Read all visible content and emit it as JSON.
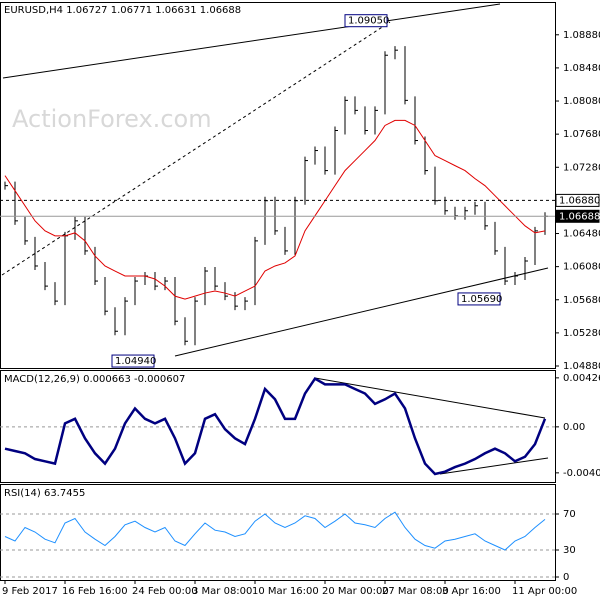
{
  "chart_data": [
    {
      "type": "ohlc",
      "title": "EURUSD,H4 1.06727 1.06771 1.06631 1.06688",
      "watermark": "ActionForex.com",
      "categories": [
        "9 Feb 2017",
        null,
        null,
        null,
        null,
        null,
        "16 Feb 16:00",
        null,
        null,
        null,
        null,
        null,
        null,
        "24 Feb 00:00",
        null,
        null,
        null,
        null,
        null,
        "3 Mar 08:00",
        null,
        null,
        null,
        null,
        null,
        "10 Mar 16:00",
        null,
        null,
        null,
        null,
        null,
        null,
        "20 Mar 00:00",
        null,
        null,
        null,
        null,
        null,
        "27 Mar 08:00",
        null,
        null,
        null,
        null,
        null,
        "3 Apr 16:00",
        null,
        null,
        null,
        null,
        null,
        null,
        "11 Apr 00:00",
        null,
        null,
        null
      ],
      "close": [
        1.07058,
        1.06633,
        1.06391,
        1.06088,
        1.05845,
        1.05664,
        1.06452,
        1.06633,
        1.0627,
        1.05906,
        1.05542,
        1.053,
        1.05664,
        1.05906,
        1.05967,
        1.05845,
        1.05906,
        1.05421,
        1.05179,
        1.05664,
        1.06027,
        1.05845,
        1.05724,
        1.05603,
        1.05664,
        1.06391,
        1.06876,
        1.06512,
        1.0627,
        1.06876,
        1.07361,
        1.07482,
        1.0724,
        1.07724,
        1.08088,
        1.07967,
        1.07724,
        1.07967,
        1.08633,
        1.08694,
        1.08088,
        1.07603,
        1.0724,
        1.06876,
        1.06755,
        1.06694,
        1.06755,
        1.06815,
        1.06573,
        1.0627,
        1.05906,
        1.05967,
        1.06148,
        1.06512,
        1.06688
      ],
      "color": "#000000",
      "ma": {
        "color": "#e00000",
        "values": [
          1.07179,
          1.06997,
          1.06815,
          1.06633,
          1.06512,
          1.06452,
          1.06452,
          1.06488,
          1.06391,
          1.06209,
          1.06088,
          1.06027,
          1.05967,
          1.05967,
          1.05967,
          1.05931,
          1.05845,
          1.05724,
          1.05688,
          1.05724,
          1.05761,
          1.05785,
          1.05761,
          1.05724,
          1.05785,
          1.05845,
          1.06027,
          1.06088,
          1.06125,
          1.06209,
          1.06512,
          1.06694,
          1.06876,
          1.07058,
          1.0724,
          1.07361,
          1.07482,
          1.07603,
          1.07785,
          1.07846,
          1.07846,
          1.07785,
          1.07603,
          1.07421,
          1.07361,
          1.073,
          1.0724,
          1.07143,
          1.07058,
          1.06937,
          1.06815,
          1.06694,
          1.06573,
          1.06488,
          1.06512
        ]
      },
      "ylim": [
        1.04856,
        1.093
      ],
      "yticks": [
        {
          "value": 1.0888,
          "label": "1.08880"
        },
        {
          "value": 1.0848,
          "label": "1.08480"
        },
        {
          "value": 1.0808,
          "label": "1.08080"
        },
        {
          "value": 1.0768,
          "label": "1.07680"
        },
        {
          "value": 1.0728,
          "label": "1.07280"
        },
        {
          "value": 1.0648,
          "label": "1.06480"
        },
        {
          "value": 1.0608,
          "label": "1.06080"
        },
        {
          "value": 1.0568,
          "label": "1.05680"
        },
        {
          "value": 1.0528,
          "label": "1.05280"
        },
        {
          "value": 1.0488,
          "label": "1.04880"
        }
      ],
      "levels": [
        {
          "value": 1.0688,
          "label": "1.06880"
        },
        {
          "value": 1.06688,
          "label": "1.06688"
        }
      ],
      "annotations": [
        {
          "value": 1.0905,
          "label": "1.09050"
        },
        {
          "value": 1.0494,
          "label": "1.04940"
        },
        {
          "value": 1.0569,
          "label": "1.05690"
        }
      ]
    },
    {
      "type": "line",
      "title": "MACD(12,26,9) 0.000663 -0.000607",
      "values": [
        -0.0019,
        -0.0021,
        -0.0023,
        -0.0028,
        -0.003,
        -0.0032,
        0.0003,
        0.0007,
        -0.001,
        -0.0023,
        -0.0032,
        -0.0019,
        0.0003,
        0.0016,
        0.0007,
        0.0003,
        0.0007,
        -0.001,
        -0.0032,
        -0.0023,
        0.0007,
        0.0011,
        -0.0002,
        -0.001,
        -0.0015,
        0.0007,
        0.0033,
        0.0024,
        0.0007,
        0.0007,
        0.0029,
        0.0042,
        0.0037,
        0.0037,
        0.0037,
        0.0033,
        0.0029,
        0.002,
        0.0024,
        0.0029,
        0.0016,
        -0.001,
        -0.0032,
        -0.0041,
        -0.0039,
        -0.0035,
        -0.0032,
        -0.0028,
        -0.0023,
        -0.0019,
        -0.0023,
        -0.003,
        -0.0026,
        -0.0015,
        0.0007
      ],
      "color": "#000080",
      "ylim": [
        -0.0048,
        0.00495
      ],
      "yticks": [
        0.004266,
        {
          "value": 0,
          "label": "0.00"
        },
        -0.004004
      ],
      "zero_line": true
    },
    {
      "type": "line",
      "title": "RSI(14) 63.7455",
      "values": [
        45,
        40,
        55,
        50,
        42,
        38,
        60,
        65,
        50,
        42,
        35,
        45,
        58,
        62,
        55,
        50,
        55,
        40,
        35,
        48,
        60,
        52,
        50,
        45,
        48,
        62,
        70,
        60,
        55,
        60,
        68,
        65,
        55,
        62,
        70,
        60,
        58,
        55,
        65,
        72,
        55,
        42,
        35,
        32,
        40,
        42,
        45,
        48,
        40,
        35,
        30,
        40,
        45,
        55,
        64
      ],
      "color": "#1e90ff",
      "ylim": [
        0,
        100
      ],
      "yticks": [
        70,
        30,
        0
      ],
      "grid": true
    }
  ]
}
